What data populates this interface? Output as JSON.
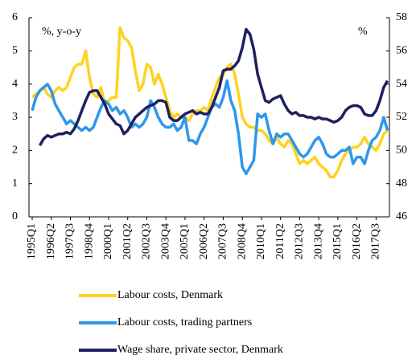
{
  "chart_data": {
    "type": "line",
    "annotations": [
      "%, y-o-y",
      "%"
    ],
    "categories": [
      "1995Q1",
      null,
      null,
      null,
      null,
      "1996Q2",
      null,
      null,
      null,
      null,
      "1997Q3",
      null,
      null,
      null,
      null,
      "1998Q4",
      null,
      null,
      null,
      null,
      "2000Q1",
      null,
      null,
      null,
      null,
      "2001Q2",
      null,
      null,
      null,
      null,
      "2002Q3",
      null,
      null,
      null,
      null,
      "2003Q4",
      null,
      null,
      null,
      null,
      "2005Q1",
      null,
      null,
      null,
      null,
      "2006Q2",
      null,
      null,
      null,
      null,
      "2007Q3",
      null,
      null,
      null,
      null,
      "2008Q4",
      null,
      null,
      null,
      null,
      "2010Q1",
      null,
      null,
      null,
      null,
      "2011Q2",
      null,
      null,
      null,
      null,
      "2012Q3",
      null,
      null,
      null,
      null,
      "2013Q4",
      null,
      null,
      null,
      null,
      "2015Q1",
      null,
      null,
      null,
      null,
      "2016Q2",
      null,
      null,
      null,
      null,
      "2017Q3",
      null,
      null,
      null
    ],
    "series": [
      {
        "name": "Labour costs, Denmark",
        "color": "#ffd21f",
        "values": [
          3.6,
          3.7,
          3.8,
          3.9,
          3.7,
          3.6,
          3.8,
          3.9,
          3.8,
          3.9,
          4.2,
          4.5,
          4.6,
          4.6,
          5.0,
          4.2,
          3.7,
          3.6,
          3.9,
          3.4,
          3.5,
          3.6,
          3.6,
          5.7,
          5.4,
          5.3,
          5.1,
          4.4,
          3.8,
          4.0,
          4.6,
          4.5,
          4.0,
          4.3,
          4.0,
          3.6,
          3.2,
          3.0,
          3.1,
          3.0,
          3.0,
          2.9,
          3.1,
          3.2,
          3.2,
          3.3,
          3.2,
          3.6,
          3.9,
          4.2,
          4.3,
          4.5,
          4.6,
          4.3,
          3.7,
          3.0,
          2.8,
          2.7,
          2.7,
          2.6,
          2.6,
          2.5,
          2.3,
          2.2,
          2.4,
          2.2,
          2.1,
          2.3,
          2.2,
          1.9,
          1.6,
          1.7,
          1.6,
          1.7,
          1.8,
          1.6,
          1.5,
          1.4,
          1.2,
          1.2,
          1.4,
          1.7,
          1.9,
          2.0,
          2.1,
          2.1,
          2.2,
          2.4,
          2.2,
          2.1,
          2.0,
          2.2,
          2.5,
          2.6
        ]
      },
      {
        "name": "Labour costs, trading partners",
        "color": "#2f97ea",
        "values": [
          3.2,
          3.6,
          3.8,
          3.9,
          4.0,
          3.8,
          3.4,
          3.2,
          3.0,
          2.8,
          2.9,
          2.8,
          2.7,
          2.6,
          2.7,
          2.6,
          2.7,
          3.0,
          3.3,
          3.5,
          3.4,
          3.2,
          3.3,
          3.1,
          3.2,
          3.0,
          2.7,
          2.8,
          2.7,
          2.8,
          3.0,
          3.5,
          3.3,
          3.0,
          2.8,
          2.7,
          2.7,
          2.8,
          2.6,
          2.7,
          3.0,
          2.3,
          2.3,
          2.2,
          2.5,
          2.7,
          3.0,
          3.3,
          3.4,
          3.3,
          3.6,
          4.1,
          3.5,
          3.2,
          2.5,
          1.5,
          1.3,
          1.5,
          1.7,
          3.1,
          3.0,
          3.1,
          2.6,
          2.2,
          2.5,
          2.4,
          2.5,
          2.5,
          2.3,
          2.1,
          1.9,
          1.8,
          1.9,
          2.1,
          2.3,
          2.4,
          2.2,
          1.9,
          1.8,
          1.8,
          1.9,
          2.0,
          2.0,
          2.1,
          1.6,
          1.8,
          1.8,
          1.6,
          2.0,
          2.3,
          2.4,
          2.6,
          3.0,
          2.6
        ]
      },
      {
        "name": "Wage share, private sector, Denmark",
        "color": "#1f2060",
        "axis": "y2",
        "values": [
          null,
          null,
          50.3,
          50.7,
          50.9,
          50.8,
          50.9,
          51.0,
          51.0,
          51.1,
          51.0,
          51.3,
          51.8,
          52.4,
          53.0,
          53.5,
          53.6,
          53.6,
          53.2,
          52.8,
          52.2,
          51.9,
          51.6,
          51.5,
          51.0,
          51.2,
          51.6,
          52.0,
          52.2,
          52.4,
          52.6,
          52.7,
          52.8,
          53.0,
          53.0,
          52.9,
          52.0,
          51.8,
          51.8,
          52.0,
          52.2,
          52.3,
          52.4,
          52.2,
          52.3,
          52.2,
          52.2,
          52.6,
          53.2,
          53.8,
          54.8,
          54.9,
          54.9,
          55.1,
          55.4,
          56.2,
          57.3,
          57.0,
          56.1,
          54.6,
          53.8,
          53.0,
          52.9,
          53.1,
          53.2,
          53.3,
          52.8,
          52.4,
          52.2,
          52.3,
          52.1,
          52.1,
          52.0,
          52.0,
          51.9,
          52.0,
          51.9,
          51.9,
          51.8,
          51.7,
          51.8,
          52.0,
          52.4,
          52.6,
          52.7,
          52.7,
          52.6,
          52.2,
          52.1,
          52.1,
          52.4,
          53.0,
          53.8,
          54.2
        ]
      }
    ],
    "ylim": [
      0,
      6
    ],
    "yticks": [
      0,
      1,
      2,
      3,
      4,
      5,
      6
    ],
    "y2lim": [
      46,
      58
    ],
    "y2ticks": [
      46,
      48,
      50,
      52,
      54,
      56,
      58
    ],
    "grid": false,
    "legend": "bottom"
  }
}
